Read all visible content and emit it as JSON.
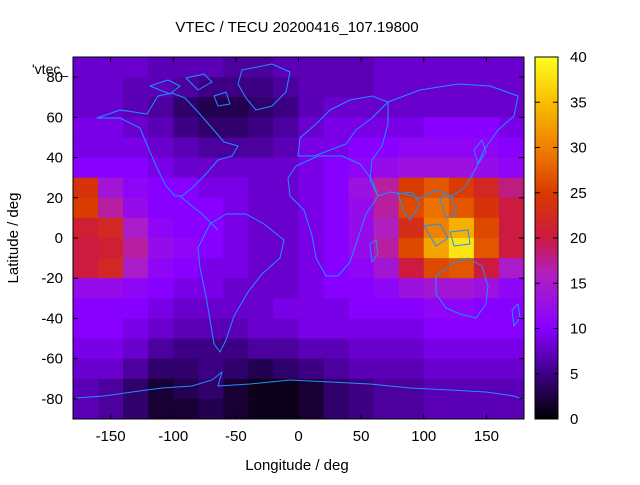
{
  "chart_data": {
    "type": "heatmap",
    "title": "VTEC / TECU 20200416_107.19800",
    "xlabel": "Longitude / deg",
    "ylabel": "Latitude / deg",
    "legend_key": "'vtec_",
    "xlim": [
      -180,
      180
    ],
    "ylim": [
      -90,
      90
    ],
    "xticks": [
      -150,
      -100,
      -50,
      0,
      50,
      100,
      150
    ],
    "yticks": [
      -80,
      -60,
      -40,
      -20,
      0,
      20,
      40,
      60,
      80
    ],
    "colorbar": {
      "min": 0,
      "max": 40,
      "ticks": [
        0,
        5,
        10,
        15,
        20,
        25,
        30,
        35,
        40
      ]
    },
    "z_grid": {
      "lats": [
        85,
        75,
        65,
        55,
        45,
        35,
        25,
        15,
        5,
        -5,
        -15,
        -25,
        -35,
        -45,
        -55,
        -65,
        -75,
        -85
      ],
      "lons": [
        -170,
        -150,
        -130,
        -110,
        -90,
        -70,
        -50,
        -30,
        -10,
        10,
        30,
        50,
        70,
        90,
        110,
        130,
        150,
        170
      ],
      "values": [
        [
          8,
          8,
          8,
          7,
          7,
          7,
          6,
          6,
          7,
          7,
          7,
          7,
          8,
          8,
          8,
          8,
          8,
          8
        ],
        [
          8,
          8,
          7,
          7,
          6,
          5,
          5,
          5,
          6,
          7,
          7,
          7,
          8,
          8,
          8,
          8,
          8,
          8
        ],
        [
          8,
          8,
          7,
          6,
          4,
          3,
          3,
          4,
          5,
          7,
          8,
          8,
          8,
          8,
          8,
          8,
          8,
          8
        ],
        [
          9,
          9,
          8,
          7,
          5,
          4,
          4,
          5,
          6,
          8,
          9,
          9,
          9,
          9,
          10,
          10,
          10,
          9
        ],
        [
          9,
          9,
          9,
          8,
          7,
          6,
          6,
          6,
          7,
          9,
          9,
          10,
          10,
          11,
          11,
          11,
          11,
          10
        ],
        [
          10,
          10,
          10,
          9,
          8,
          8,
          8,
          8,
          8,
          9,
          10,
          11,
          12,
          13,
          13,
          13,
          12,
          11
        ],
        [
          24,
          14,
          11,
          10,
          10,
          9,
          9,
          8,
          8,
          9,
          10,
          13,
          17,
          25,
          27,
          25,
          22,
          18
        ],
        [
          25,
          17,
          12,
          10,
          10,
          10,
          9,
          8,
          8,
          9,
          10,
          12,
          17,
          26,
          29,
          27,
          24,
          20
        ],
        [
          21,
          22,
          15,
          11,
          10,
          10,
          9,
          8,
          8,
          9,
          10,
          12,
          16,
          23,
          30,
          34,
          26,
          20
        ],
        [
          20,
          21,
          17,
          12,
          11,
          10,
          9,
          8,
          8,
          9,
          10,
          12,
          17,
          26,
          33,
          38,
          27,
          20
        ],
        [
          20,
          22,
          15,
          11,
          10,
          9,
          9,
          8,
          8,
          9,
          10,
          11,
          14,
          20,
          26,
          27,
          20,
          15
        ],
        [
          12,
          12,
          11,
          10,
          9,
          9,
          8,
          8,
          8,
          9,
          10,
          10,
          11,
          13,
          14,
          14,
          13,
          11
        ],
        [
          10,
          10,
          10,
          9,
          8,
          8,
          8,
          8,
          9,
          9,
          9,
          10,
          10,
          10,
          11,
          11,
          10,
          10
        ],
        [
          10,
          10,
          9,
          8,
          7,
          7,
          7,
          8,
          8,
          9,
          9,
          9,
          9,
          9,
          10,
          10,
          10,
          10
        ],
        [
          9,
          9,
          8,
          6,
          5,
          5,
          5,
          6,
          6,
          7,
          7,
          8,
          8,
          8,
          9,
          9,
          9,
          9
        ],
        [
          8,
          8,
          6,
          4,
          4,
          5,
          4,
          3,
          4,
          5,
          6,
          7,
          7,
          7,
          8,
          8,
          8,
          8
        ],
        [
          7,
          6,
          4,
          2,
          3,
          4,
          2,
          1,
          1,
          2,
          4,
          5,
          6,
          6,
          7,
          7,
          7,
          7
        ],
        [
          7,
          6,
          4,
          2,
          2,
          3,
          2,
          1,
          1,
          2,
          4,
          5,
          6,
          6,
          7,
          7,
          7,
          7
        ]
      ]
    }
  }
}
